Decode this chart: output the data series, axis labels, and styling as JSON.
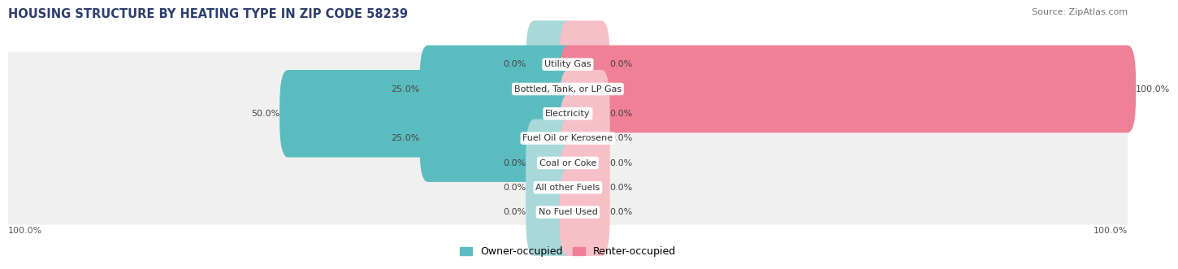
{
  "title": "HOUSING STRUCTURE BY HEATING TYPE IN ZIP CODE 58239",
  "source": "Source: ZipAtlas.com",
  "categories": [
    "Utility Gas",
    "Bottled, Tank, or LP Gas",
    "Electricity",
    "Fuel Oil or Kerosene",
    "Coal or Coke",
    "All other Fuels",
    "No Fuel Used"
  ],
  "owner_values": [
    0.0,
    25.0,
    50.0,
    25.0,
    0.0,
    0.0,
    0.0
  ],
  "renter_values": [
    0.0,
    100.0,
    0.0,
    0.0,
    0.0,
    0.0,
    0.0
  ],
  "owner_color": "#5bbcbf",
  "renter_color": "#f08096",
  "owner_color_light": "#a8d8da",
  "renter_color_light": "#f7bfc8",
  "row_bg_color": "#f0f0f0",
  "x_max": 100.0,
  "stub_size": 6.0,
  "legend_owner": "Owner-occupied",
  "legend_renter": "Renter-occupied",
  "title_color": "#2d3e6d",
  "source_color": "#777777",
  "bar_height": 0.55,
  "label_fontsize": 8.0,
  "cat_fontsize": 8.0
}
